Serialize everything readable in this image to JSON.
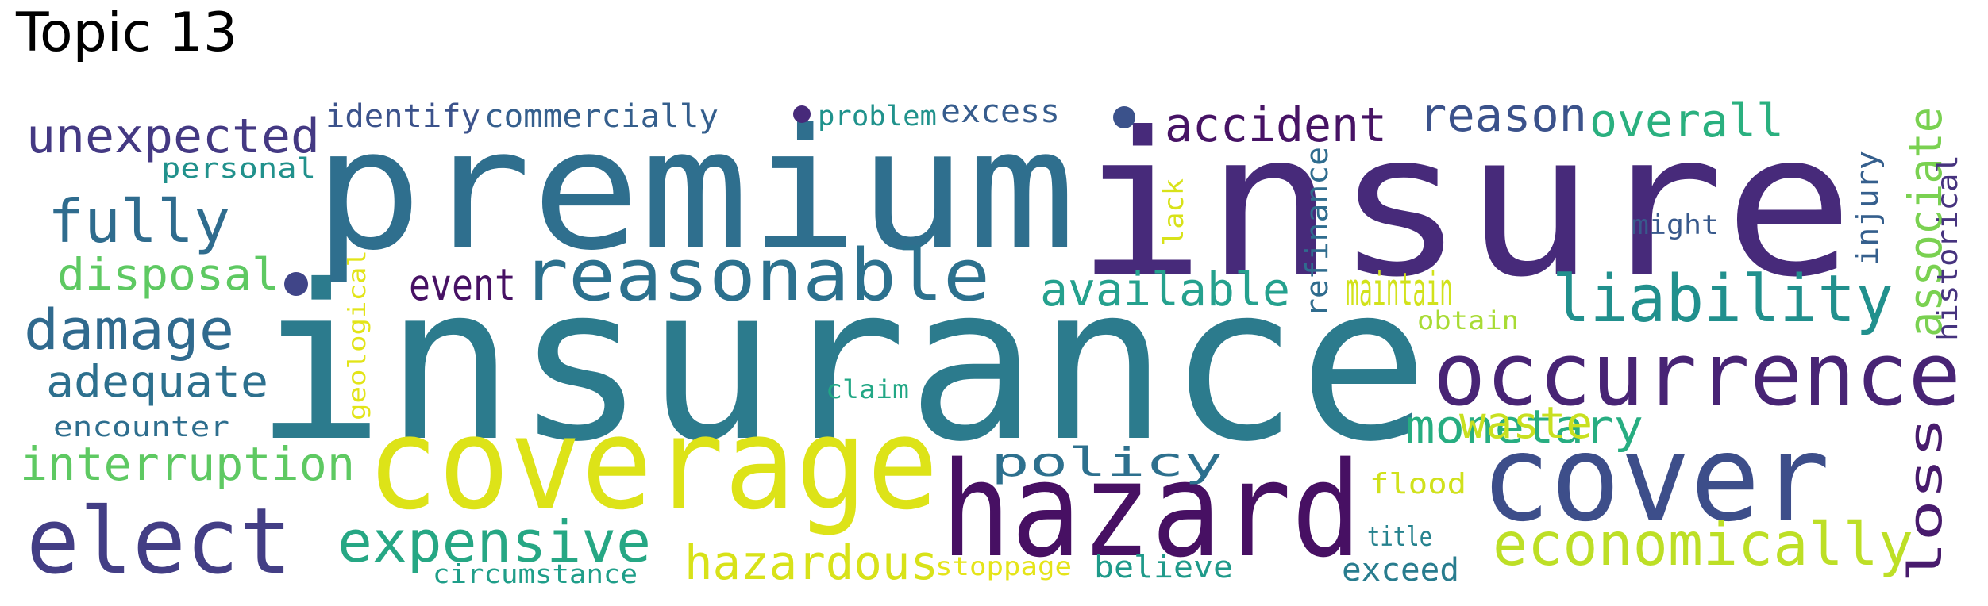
{
  "title": "Topic 13",
  "words": [
    {
      "text": "insurance",
      "color": "#2c7b8d"
    },
    {
      "text": "insure",
      "color": "#472a7a"
    },
    {
      "text": "premium",
      "color": "#2f6f8e"
    },
    {
      "text": "coverage",
      "color": "#dde318"
    },
    {
      "text": "hazard",
      "color": "#471063"
    },
    {
      "text": "cover",
      "color": "#3d4e8a"
    },
    {
      "text": "occurrence",
      "color": "#482475"
    },
    {
      "text": "elect",
      "color": "#433e85"
    },
    {
      "text": "reasonable",
      "color": "#2c718e"
    },
    {
      "text": "liability",
      "color": "#21908d"
    },
    {
      "text": "economically",
      "color": "#bddf26"
    },
    {
      "text": "expensive",
      "color": "#26a784"
    },
    {
      "text": "unexpected",
      "color": "#443983"
    },
    {
      "text": "fully",
      "color": "#2f6c8e"
    },
    {
      "text": "damage",
      "color": "#306a8e"
    },
    {
      "text": "hazardous",
      "color": "#d8e219"
    },
    {
      "text": "interruption",
      "color": "#5ec962"
    },
    {
      "text": "accident",
      "color": "#471365"
    },
    {
      "text": "reason",
      "color": "#3b528b"
    },
    {
      "text": "overall",
      "color": "#2ab07f"
    },
    {
      "text": "available",
      "color": "#25a18e"
    },
    {
      "text": "disposal",
      "color": "#5ec962"
    },
    {
      "text": "adequate",
      "color": "#2d708e"
    },
    {
      "text": "monetary",
      "color": "#27ad81"
    },
    {
      "text": "maintain",
      "color": "#d2e21b"
    },
    {
      "text": "waste",
      "color": "#c8e020"
    },
    {
      "text": "policy",
      "color": "#2d708e"
    },
    {
      "text": "event",
      "color": "#471164"
    },
    {
      "text": "associate",
      "color": "#7ad151"
    },
    {
      "text": "loss",
      "color": "#481b6d"
    },
    {
      "text": "identify",
      "color": "#3b528b"
    },
    {
      "text": "commercially",
      "color": "#355f8d"
    },
    {
      "text": "excess",
      "color": "#365c8d"
    },
    {
      "text": "problem",
      "color": "#20928c"
    },
    {
      "text": "personal",
      "color": "#21918c"
    },
    {
      "text": "encounter",
      "color": "#2e6e8e"
    },
    {
      "text": "circumstance",
      "color": "#1f9e89"
    },
    {
      "text": "stoppage",
      "color": "#e5e419"
    },
    {
      "text": "believe",
      "color": "#1f9a8a"
    },
    {
      "text": "exceed",
      "color": "#287c8e"
    },
    {
      "text": "title",
      "color": "#26828e"
    },
    {
      "text": "flood",
      "color": "#d0e11c"
    },
    {
      "text": "claim",
      "color": "#22a785"
    },
    {
      "text": "obtain",
      "color": "#a8db34"
    },
    {
      "text": "might",
      "color": "#38598c"
    },
    {
      "text": "injury",
      "color": "#355f8d"
    },
    {
      "text": "historical",
      "color": "#46337e"
    },
    {
      "text": "refinance",
      "color": "#2f6c8e"
    },
    {
      "text": "lack",
      "color": "#d8e219"
    },
    {
      "text": "geological",
      "color": "#e2e418"
    },
    {
      "text": "dot",
      "color": "#3b528b"
    },
    {
      "text": "dot",
      "color": "#404588"
    },
    {
      "text": "dot",
      "color": "#472a7a"
    }
  ]
}
